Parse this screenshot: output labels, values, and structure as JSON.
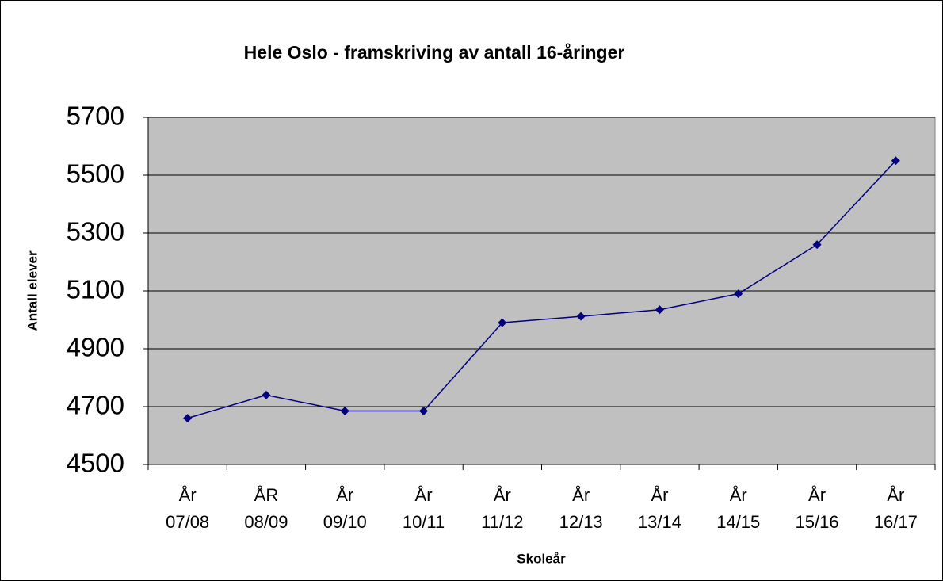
{
  "chart_data": {
    "type": "line",
    "title": "Hele Oslo - framskriving av antall 16-åringer",
    "x_label": "Skoleår",
    "y_label": "Antall elever",
    "categories": [
      "År\n07/08",
      "ÅR\n08/09",
      "År\n09/10",
      "År\n10/11",
      "År\n11/12",
      "År\n12/13",
      "År\n13/14",
      "År\n14/15",
      "År\n15/16",
      "År\n16/17"
    ],
    "series": [
      {
        "name": "Antall elever",
        "color": "#000080",
        "values": [
          4660,
          4740,
          4685,
          4685,
          4990,
          5012,
          5035,
          5090,
          5260,
          5550
        ]
      }
    ],
    "ylim": [
      4500,
      5700
    ],
    "yticks": [
      4500,
      4700,
      4900,
      5100,
      5300,
      5500,
      5700
    ],
    "grid": true,
    "plot_background": "#c0c0c0"
  }
}
